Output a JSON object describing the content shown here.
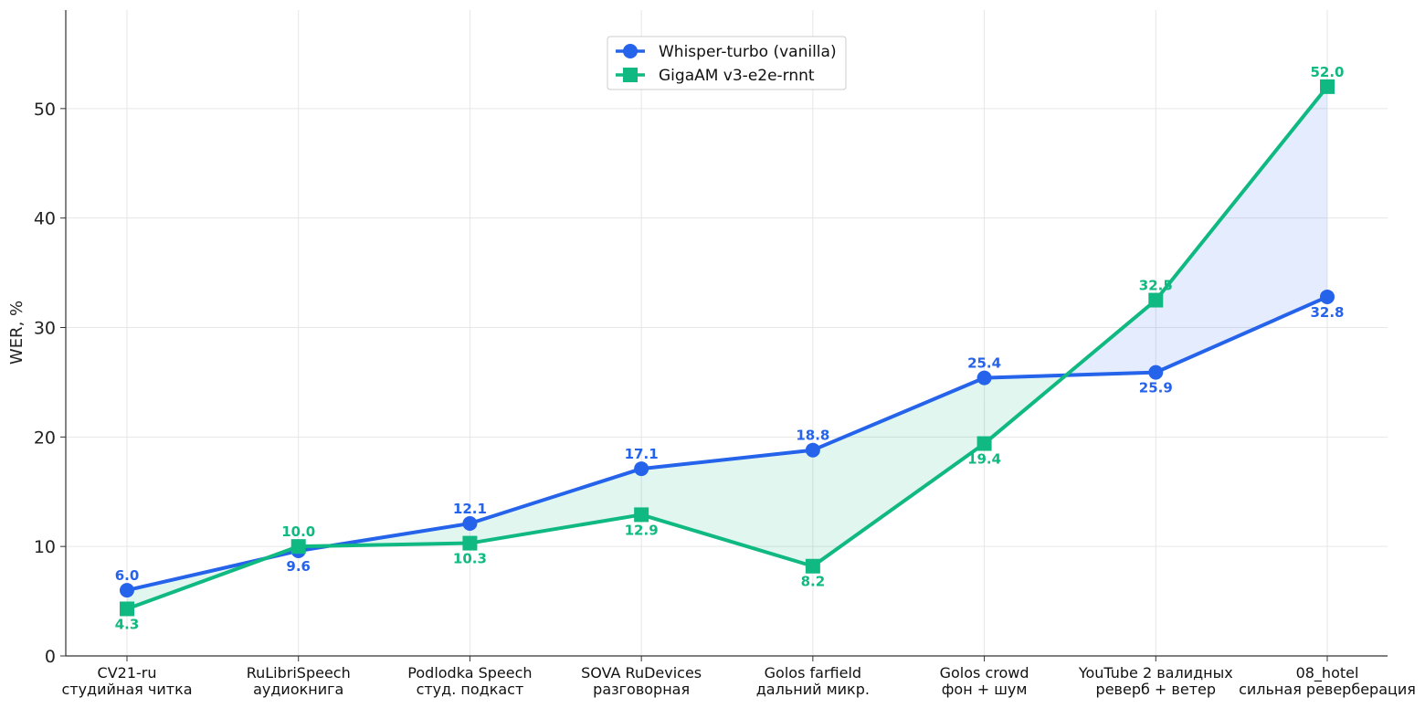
{
  "chart_data": {
    "type": "line",
    "title": "",
    "xlabel": "",
    "ylabel": "WER, %",
    "ylim": [
      0,
      59
    ],
    "yticks": [
      0,
      10,
      20,
      30,
      40,
      50
    ],
    "grid": true,
    "legend_position": "top-center",
    "categories": [
      [
        "CV21-ru",
        "студийная читка"
      ],
      [
        "RuLibriSpeech",
        "аудиокнига"
      ],
      [
        "Podlodka Speech",
        "студ. подкаст"
      ],
      [
        "SOVA RuDevices",
        "разговорная"
      ],
      [
        "Golos farfield",
        "дальний микр."
      ],
      [
        "Golos crowd",
        "фон + шум"
      ],
      [
        "YouTube 2 валидных",
        "реверб + ветер"
      ],
      [
        "08_hotel",
        "сильная реверберация"
      ]
    ],
    "series": [
      {
        "name": "Whisper-turbo (vanilla)",
        "color": "#2563eb",
        "marker": "circle",
        "values": [
          6.0,
          9.6,
          12.1,
          17.1,
          18.8,
          25.4,
          25.9,
          32.8
        ],
        "labels": [
          "6.0",
          "9.6",
          "12.1",
          "17.1",
          "18.8",
          "25.4",
          "25.9",
          "32.8"
        ]
      },
      {
        "name": "GigaAM v3-e2e-rnnt",
        "color": "#10b981",
        "marker": "square",
        "values": [
          4.3,
          10.0,
          10.3,
          12.9,
          8.2,
          19.4,
          32.5,
          52.0
        ],
        "labels": [
          "4.3",
          "10.0",
          "10.3",
          "12.9",
          "8.2",
          "19.4",
          "32.5",
          "52.0"
        ]
      }
    ],
    "fill_between": {
      "whisper_higher_color": "#10b981",
      "gigaam_higher_color": "#2563eb"
    }
  }
}
